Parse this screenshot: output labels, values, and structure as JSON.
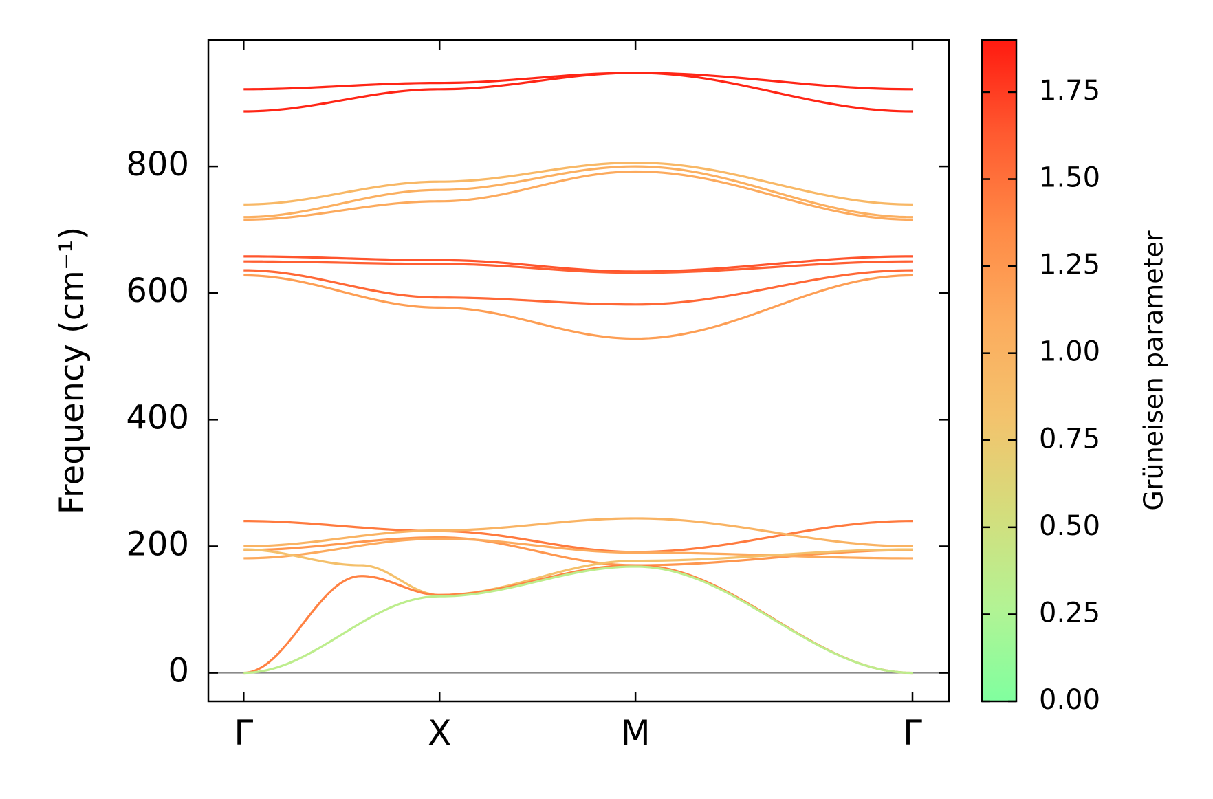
{
  "chart_data": {
    "type": "line",
    "ylabel": "Frequency (cm⁻¹)",
    "ylim": [
      -45,
      1000
    ],
    "yticks": [
      0,
      200,
      400,
      600,
      800
    ],
    "kpoints": [
      {
        "label": "Γ",
        "x": 0
      },
      {
        "label": "X",
        "x": 1
      },
      {
        "label": "M",
        "x": 2
      },
      {
        "label": "Γ",
        "x": 3.414
      }
    ],
    "xlim": [
      -0.18,
      3.6
    ],
    "colorbar": {
      "label": "Grüneisen parameter",
      "min": 0.0,
      "max": 1.9,
      "ticks": [
        "0.00",
        "0.25",
        "0.50",
        "0.75",
        "1.00",
        "1.25",
        "1.50",
        "1.75"
      ],
      "colors": [
        "#80ff9f",
        "#b3f394",
        "#d4dd7c",
        "#f3c36d",
        "#fcac5e",
        "#ff8a46",
        "#ff5a30",
        "#ff1a10"
      ]
    },
    "zero_line": true,
    "grid": false,
    "branches": [
      {
        "points": [
          [
            0,
            922
          ],
          [
            1,
            932
          ],
          [
            2,
            948
          ],
          [
            3.414,
            922
          ]
        ],
        "g": 1.85
      },
      {
        "points": [
          [
            0,
            887
          ],
          [
            1,
            922
          ],
          [
            2,
            948
          ],
          [
            3.414,
            887
          ]
        ],
        "g": 1.85
      },
      {
        "points": [
          [
            0,
            740
          ],
          [
            1,
            776
          ],
          [
            2,
            806
          ],
          [
            3.414,
            740
          ]
        ],
        "g": 0.95
      },
      {
        "points": [
          [
            0,
            720
          ],
          [
            1,
            763
          ],
          [
            2,
            800
          ],
          [
            3.414,
            720
          ]
        ],
        "g": 1.05
      },
      {
        "points": [
          [
            0,
            716
          ],
          [
            1,
            745
          ],
          [
            2,
            792
          ],
          [
            3.414,
            716
          ]
        ],
        "g": 1.1
      },
      {
        "points": [
          [
            0,
            658
          ],
          [
            1,
            652
          ],
          [
            2,
            634
          ],
          [
            3.414,
            658
          ]
        ],
        "g": 1.65
      },
      {
        "points": [
          [
            0,
            650
          ],
          [
            1,
            646
          ],
          [
            2,
            632
          ],
          [
            3.414,
            650
          ]
        ],
        "g": 1.6
      },
      {
        "points": [
          [
            0,
            636
          ],
          [
            1,
            593
          ],
          [
            2,
            582
          ],
          [
            3.414,
            636
          ]
        ],
        "g": 1.55
      },
      {
        "points": [
          [
            0,
            628
          ],
          [
            1,
            577
          ],
          [
            2,
            528
          ],
          [
            3.414,
            628
          ]
        ],
        "g": 1.2
      },
      {
        "points": [
          [
            0,
            240
          ],
          [
            1,
            224
          ],
          [
            2,
            191
          ],
          [
            3.414,
            240
          ]
        ],
        "g": 1.45
      },
      {
        "points": [
          [
            0,
            200
          ],
          [
            1,
            225
          ],
          [
            2,
            244
          ],
          [
            3.414,
            200
          ]
        ],
        "g": 1.0
      },
      {
        "points": [
          [
            0,
            194
          ],
          [
            1,
            214
          ],
          [
            2,
            170
          ],
          [
            3.414,
            194
          ]
        ],
        "g": 1.25
      },
      {
        "points": [
          [
            0,
            181
          ],
          [
            1,
            212
          ],
          [
            2,
            190
          ],
          [
            3.414,
            181
          ]
        ],
        "g": 1.1
      },
      {
        "points": [
          [
            0,
            195
          ],
          [
            0.6,
            170
          ],
          [
            1,
            123
          ],
          [
            2,
            177
          ],
          [
            3.414,
            195
          ]
        ],
        "g": 0.85
      },
      {
        "points": [
          [
            0,
            0
          ],
          [
            0.6,
            153
          ],
          [
            1,
            123
          ],
          [
            2,
            170
          ],
          [
            3.414,
            0
          ]
        ],
        "g": 1.4
      },
      {
        "points": [
          [
            0,
            0
          ],
          [
            1,
            121
          ],
          [
            2,
            168
          ],
          [
            3.414,
            0
          ]
        ],
        "g": 0.35
      }
    ]
  }
}
